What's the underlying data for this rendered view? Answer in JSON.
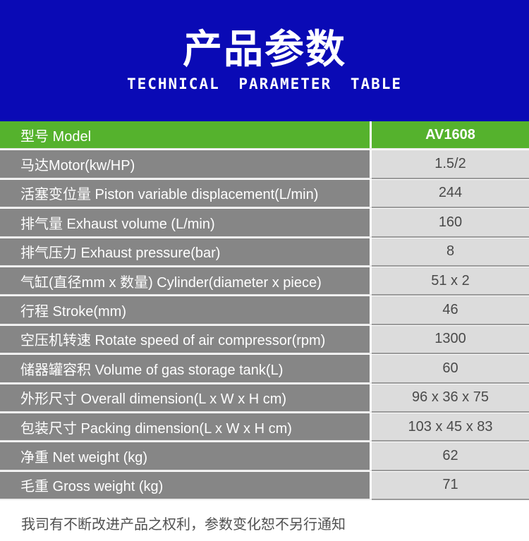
{
  "header": {
    "title": "产品参数",
    "subtitle": "TECHNICAL PARAMETER TABLE"
  },
  "table": {
    "rows": [
      {
        "label": "型号 Model",
        "value": "AV1608"
      },
      {
        "label": "马达Motor(kw/HP)",
        "value": "1.5/2"
      },
      {
        "label": "活塞变位量 Piston variable displacement(L/min)",
        "value": "244"
      },
      {
        "label": "排气量 Exhaust volume (L/min)",
        "value": "160"
      },
      {
        "label": "排气压力 Exhaust pressure(bar)",
        "value": "8"
      },
      {
        "label": "气缸(直径mm x 数量) Cylinder(diameter x piece)",
        "value": "51 x 2"
      },
      {
        "label": "行程 Stroke(mm)",
        "value": "46"
      },
      {
        "label": "空压机转速 Rotate speed of air compressor(rpm)",
        "value": "1300"
      },
      {
        "label": "储器罐容积 Volume of gas storage tank(L)",
        "value": "60"
      },
      {
        "label": "外形尺寸 Overall dimension(L x W x H cm)",
        "value": "96 x 36 x 75"
      },
      {
        "label": "包装尺寸 Packing dimension(L x W x H cm)",
        "value": "103 x 45 x 83"
      },
      {
        "label": "净重 Net weight (kg)",
        "value": "62"
      },
      {
        "label": "毛重 Gross weight (kg)",
        "value": "71"
      }
    ]
  },
  "footer": {
    "note": "我司有不断改进产品之权利，参数变化恕不另行通知"
  },
  "colors": {
    "banner_bg": "#0a0ab5",
    "highlight_row_bg": "#55b22d",
    "label_cell_bg": "#868686",
    "value_cell_bg": "#dcdcdc",
    "label_text": "#ffffff",
    "value_text": "#4a4a4a"
  }
}
